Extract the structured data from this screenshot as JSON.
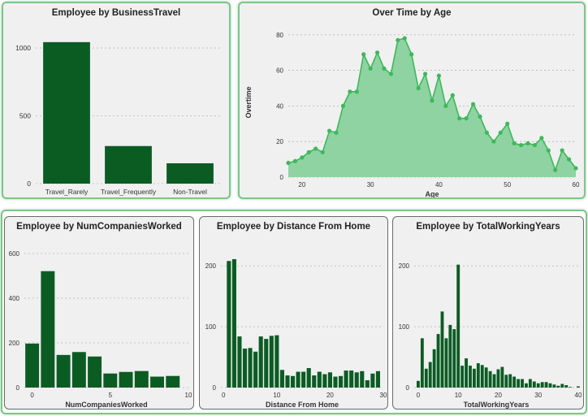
{
  "chart_data": [
    {
      "id": "bt",
      "type": "bar",
      "title": "Employee by BusinessTravel",
      "categories": [
        "Travel_Rarely",
        "Travel_Frequently",
        "Non-Travel"
      ],
      "values": [
        1043,
        277,
        150
      ],
      "ylim": [
        0,
        1150
      ],
      "yticks": [
        0,
        500,
        1000
      ],
      "xlabel": "",
      "ylabel": "",
      "grid": true,
      "color": "#0b5c23"
    },
    {
      "id": "ot",
      "type": "area",
      "title": "Over Time by Age",
      "xlabel": "Age",
      "ylabel": "Overtime",
      "xlim": [
        18,
        60
      ],
      "ylim": [
        0,
        84
      ],
      "xticks": [
        20,
        30,
        40,
        50,
        60
      ],
      "yticks": [
        0,
        20,
        40,
        60,
        80
      ],
      "x": [
        18,
        19,
        20,
        21,
        22,
        23,
        24,
        25,
        26,
        27,
        28,
        29,
        30,
        31,
        32,
        33,
        34,
        35,
        36,
        37,
        38,
        39,
        40,
        41,
        42,
        43,
        44,
        45,
        46,
        47,
        48,
        49,
        50,
        51,
        52,
        53,
        54,
        55,
        56,
        57,
        58,
        59,
        60
      ],
      "y": [
        8,
        9,
        11,
        14,
        16,
        14,
        26,
        25,
        40,
        48,
        48,
        69,
        61,
        70,
        61,
        58,
        77,
        78,
        69,
        50,
        58,
        43,
        57,
        40,
        46,
        33,
        33,
        41,
        34,
        25,
        20,
        25,
        30,
        19,
        18,
        19,
        18,
        22,
        15,
        4,
        15,
        10,
        5
      ],
      "grid": true,
      "color": "#3db85b",
      "fill": "#8fd3a2"
    },
    {
      "id": "nc",
      "type": "bar",
      "title": "Employee by NumCompaniesWorked",
      "xlabel": "NumCompaniesWorked",
      "ylabel": "",
      "categories": [
        0,
        1,
        2,
        3,
        4,
        5,
        6,
        7,
        8,
        9
      ],
      "values": [
        197,
        521,
        146,
        159,
        139,
        63,
        70,
        74,
        49,
        52
      ],
      "xlim": [
        -0.5,
        10
      ],
      "ylim": [
        0,
        640
      ],
      "xticks": [
        0,
        5,
        10
      ],
      "yticks": [
        0,
        200,
        400,
        600
      ],
      "grid": true,
      "color": "#0b5c23"
    },
    {
      "id": "dh",
      "type": "bar",
      "title": "Employee by Distance From Home",
      "xlabel": "Distance From Home",
      "ylabel": "",
      "categories": [
        1,
        2,
        3,
        4,
        5,
        6,
        7,
        8,
        9,
        10,
        11,
        12,
        13,
        14,
        15,
        16,
        17,
        18,
        19,
        20,
        21,
        22,
        23,
        24,
        25,
        26,
        27,
        28,
        29
      ],
      "values": [
        208,
        211,
        84,
        64,
        65,
        59,
        84,
        80,
        85,
        86,
        29,
        20,
        19,
        26,
        26,
        32,
        20,
        26,
        22,
        25,
        18,
        19,
        28,
        28,
        25,
        27,
        12,
        23,
        27
      ],
      "xlim": [
        -0.5,
        30
      ],
      "ylim": [
        0,
        235
      ],
      "xticks": [
        0,
        10,
        20,
        30
      ],
      "yticks": [
        0,
        100,
        200
      ],
      "grid": true,
      "color": "#0b5c23"
    },
    {
      "id": "tw",
      "type": "bar",
      "title": "Employee by TotalWorkingYears",
      "xlabel": "TotalWorkingYears",
      "ylabel": "",
      "categories": [
        0,
        1,
        2,
        3,
        4,
        5,
        6,
        7,
        8,
        9,
        10,
        11,
        12,
        13,
        14,
        15,
        16,
        17,
        18,
        19,
        20,
        21,
        22,
        23,
        24,
        25,
        26,
        27,
        28,
        29,
        30,
        31,
        32,
        33,
        34,
        35,
        36,
        37,
        38,
        40
      ],
      "values": [
        11,
        81,
        31,
        42,
        63,
        88,
        125,
        81,
        103,
        96,
        202,
        36,
        48,
        36,
        31,
        40,
        37,
        33,
        27,
        22,
        30,
        34,
        21,
        22,
        18,
        14,
        14,
        7,
        14,
        10,
        7,
        9,
        9,
        7,
        5,
        3,
        6,
        4,
        1,
        2
      ],
      "xlim": [
        -1,
        40
      ],
      "ylim": [
        0,
        235
      ],
      "xticks": [
        0,
        10,
        20,
        30,
        40
      ],
      "yticks": [
        0,
        100,
        200
      ],
      "grid": true,
      "color": "#0b5c23"
    }
  ]
}
